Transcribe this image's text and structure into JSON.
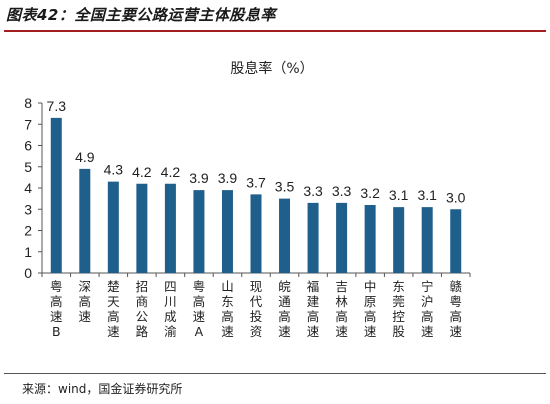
{
  "figure": {
    "title": "图表42：全国主要公路运营主体股息率",
    "source": "来源：wind，国金证券研究所"
  },
  "chart_data": {
    "type": "bar",
    "title": "股息率（%）",
    "categories": [
      "粤高速B",
      "深高速",
      "楚天高速",
      "招商公路",
      "四川成渝",
      "粤高速A",
      "山东高速",
      "现代投资",
      "皖通高速",
      "福建高速",
      "吉林高速",
      "中原高速",
      "东莞控股",
      "宁沪高速",
      "赣粤高速"
    ],
    "values": [
      7.3,
      4.9,
      4.3,
      4.2,
      4.2,
      3.9,
      3.9,
      3.7,
      3.5,
      3.3,
      3.3,
      3.2,
      3.1,
      3.1,
      3.0
    ],
    "value_labels": [
      "7.3",
      "4.9",
      "4.3",
      "4.2",
      "4.2",
      "3.9",
      "3.9",
      "3.7",
      "3.5",
      "3.3",
      "3.3",
      "3.2",
      "3.1",
      "3.1",
      "3.0"
    ],
    "yticks": [
      0,
      1,
      2,
      3,
      4,
      5,
      6,
      7,
      8
    ],
    "ylim": [
      0,
      8
    ],
    "xlabel": "",
    "ylabel": "",
    "grid": false,
    "legend": "none",
    "bar_color": "#1f5f8b",
    "axis_color": "#555555"
  }
}
